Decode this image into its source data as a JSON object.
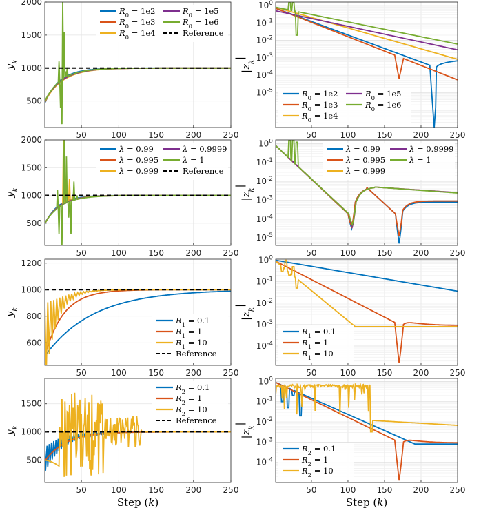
{
  "figure": {
    "x_axis_label": "Step ($k$)"
  },
  "colors": {
    "blue": "#0072BD",
    "orange": "#D95319",
    "yellow": "#EDB120",
    "purple": "#7E2F8E",
    "green": "#77AC30",
    "reference": "#000000"
  },
  "chart_data": [
    {
      "type": "line",
      "panel": "a-left",
      "ylabel": "y_k",
      "yscale": "linear",
      "xlim": [
        1,
        250
      ],
      "ylim": [
        100,
        2000
      ],
      "xticks": [
        50,
        100,
        150,
        200,
        250
      ],
      "yticks": [
        500,
        1000,
        1500,
        2000
      ],
      "x_tick_labels_visible": true,
      "xlabel": "",
      "legend_position": "top-right",
      "series": [
        {
          "name": "R_0 = 1e2",
          "color": "blue",
          "model": {
            "kind": "converge",
            "start": 470,
            "target": 1000,
            "tau": 20
          }
        },
        {
          "name": "R_0 = 1e3",
          "color": "orange",
          "model": {
            "kind": "converge",
            "start": 480,
            "target": 1000,
            "tau": 22
          }
        },
        {
          "name": "R_0 = 1e4",
          "color": "yellow",
          "model": {
            "kind": "converge",
            "start": 490,
            "target": 1000,
            "tau": 24
          }
        },
        {
          "name": "R_0 = 1e5",
          "color": "purple",
          "model": {
            "kind": "converge",
            "start": 500,
            "target": 1000,
            "tau": 23
          }
        },
        {
          "name": "R_0 = 1e6",
          "color": "green",
          "model": {
            "kind": "spiky",
            "start": 500,
            "target": 1000,
            "tau": 22,
            "spikes": [
              [
                20,
                1100
              ],
              [
                22,
                400
              ],
              [
                24,
                150
              ],
              [
                25,
                2000
              ],
              [
                27,
                1550
              ],
              [
                29,
                950
              ],
              [
                31,
                1010
              ]
            ]
          }
        },
        {
          "name": "Reference",
          "color": "reference",
          "dashed": true,
          "model": {
            "kind": "const",
            "value": 1000
          }
        }
      ]
    },
    {
      "type": "line",
      "panel": "a-right",
      "ylabel": "|z_k|",
      "yscale": "log",
      "xlim": [
        1,
        250
      ],
      "ylim_exp": [
        -7,
        0.2
      ],
      "xticks": [
        50,
        100,
        150,
        200,
        250
      ],
      "yticks_exp": [
        -5,
        -4,
        -3,
        -2,
        -1,
        0
      ],
      "x_tick_labels_visible": true,
      "xlabel": "",
      "legend_position": "bottom-left",
      "series": [
        {
          "name": "R_0 = 1e2",
          "color": "blue",
          "model": {
            "kind": "decay",
            "a0": 0.7,
            "rate": 0.0155,
            "dips": [
              [
                218,
                -7
              ]
            ],
            "after": 250
          }
        },
        {
          "name": "R_0 = 1e3",
          "color": "orange",
          "model": {
            "kind": "decay",
            "a0": 0.7,
            "rate": 0.0165,
            "dips": [
              [
                170,
                -4.2
              ]
            ]
          }
        },
        {
          "name": "R_0 = 1e4",
          "color": "yellow",
          "model": {
            "kind": "decay",
            "a0": 0.8,
            "rate": 0.012
          }
        },
        {
          "name": "R_0 = 1e5",
          "color": "purple",
          "model": {
            "kind": "decay",
            "a0": 0.5,
            "rate": 0.009
          }
        },
        {
          "name": "R_0 = 1e6",
          "color": "green",
          "model": {
            "kind": "decay",
            "a0": 0.8,
            "rate": 0.0085,
            "spikes": [
              [
                20,
                1.5
              ],
              [
                25,
                1.5
              ],
              [
                30,
                0.02
              ]
            ]
          }
        }
      ]
    },
    {
      "type": "line",
      "panel": "b-left",
      "ylabel": "y_k",
      "yscale": "linear",
      "xlim": [
        1,
        250
      ],
      "ylim": [
        100,
        2000
      ],
      "xticks": [
        50,
        100,
        150,
        200,
        250
      ],
      "yticks": [
        500,
        1000,
        1500,
        2000
      ],
      "x_tick_labels_visible": true,
      "xlabel": "",
      "legend_position": "top-right",
      "series": [
        {
          "name": "λ = 0.99",
          "color": "blue",
          "model": {
            "kind": "converge",
            "start": 480,
            "target": 1000,
            "tau": 18
          }
        },
        {
          "name": "λ = 0.995",
          "color": "orange",
          "model": {
            "kind": "converge",
            "start": 490,
            "target": 1000,
            "tau": 20
          }
        },
        {
          "name": "λ = 0.999",
          "color": "yellow",
          "model": {
            "kind": "spiky",
            "start": 490,
            "target": 1000,
            "tau": 20,
            "spikes": [
              [
                26,
                2000
              ],
              [
                30,
                900
              ],
              [
                34,
                1300
              ],
              [
                38,
                1000
              ]
            ]
          }
        },
        {
          "name": "λ = 0.9999",
          "color": "purple",
          "model": {
            "kind": "converge",
            "start": 500,
            "target": 1000,
            "tau": 21
          }
        },
        {
          "name": "λ = 1",
          "color": "green",
          "model": {
            "kind": "spiky",
            "start": 500,
            "target": 1000,
            "tau": 22,
            "spikes": [
              [
                18,
                1100
              ],
              [
                20,
                300
              ],
              [
                24,
                100
              ],
              [
                27,
                2000
              ],
              [
                30,
                1700
              ],
              [
                33,
                600
              ],
              [
                36,
                300
              ],
              [
                40,
                1250
              ],
              [
                44,
                1000
              ]
            ]
          }
        },
        {
          "name": "Reference",
          "color": "reference",
          "dashed": true,
          "model": {
            "kind": "const",
            "value": 1000
          }
        }
      ]
    },
    {
      "type": "line",
      "panel": "b-right",
      "ylabel": "|z_k|",
      "yscale": "log",
      "xlim": [
        1,
        250
      ],
      "ylim_exp": [
        -5.4,
        0.2
      ],
      "xticks": [
        50,
        100,
        150,
        200,
        250
      ],
      "yticks_exp": [
        -5,
        -4,
        -3,
        -2,
        -1,
        0
      ],
      "x_tick_labels_visible": true,
      "xlabel": "",
      "legend_position": "top-right",
      "series": [
        {
          "name": "λ = 0.99",
          "color": "blue",
          "model": {
            "kind": "double_dip",
            "d1": 105,
            "d2": 170,
            "low1": -4.5,
            "low2": -5.3,
            "peak": 0.005,
            "tail": 0.0008
          }
        },
        {
          "name": "λ = 0.995",
          "color": "orange",
          "model": {
            "kind": "double_dip",
            "d1": 105,
            "d2": 170,
            "low1": -4.4,
            "low2": -4.9,
            "peak": 0.005,
            "tail": 0.0009
          }
        },
        {
          "name": "λ = 0.999",
          "color": "yellow",
          "model": {
            "kind": "double_dip",
            "d1": 106,
            "d2": 0,
            "low1": -4.3,
            "low2": 0,
            "peak": 0.005,
            "tail": 0.0025
          }
        },
        {
          "name": "λ = 0.9999",
          "color": "purple",
          "model": {
            "kind": "double_dip",
            "d1": 106,
            "d2": 0,
            "low1": -4.4,
            "low2": 0,
            "peak": 0.005,
            "tail": 0.0025
          }
        },
        {
          "name": "λ = 1",
          "color": "green",
          "model": {
            "kind": "double_dip",
            "d1": 106,
            "d2": 0,
            "low1": -4.3,
            "low2": 0,
            "peak": 0.005,
            "tail": 0.0024,
            "spikes": [
              [
                20,
                1.5
              ],
              [
                25,
                1.6
              ],
              [
                30,
                1.2
              ]
            ]
          }
        }
      ]
    },
    {
      "type": "line",
      "panel": "c-left",
      "ylabel": "y_k",
      "yscale": "linear",
      "xlim": [
        1,
        250
      ],
      "ylim": [
        430,
        1230
      ],
      "xticks": [
        50,
        100,
        150,
        200,
        250
      ],
      "yticks": [
        600,
        800,
        1000,
        1200
      ],
      "x_tick_labels_visible": true,
      "xlabel": "",
      "legend_position": "bottom-right",
      "series": [
        {
          "name": "R_1 = 0.1",
          "color": "blue",
          "model": {
            "kind": "converge",
            "start": 500,
            "target": 1000,
            "tau": 65
          }
        },
        {
          "name": "R_1 = 1",
          "color": "orange",
          "model": {
            "kind": "converge",
            "start": 500,
            "target": 1000,
            "tau": 25
          }
        },
        {
          "name": "R_1 = 10",
          "color": "yellow",
          "model": {
            "kind": "oscill",
            "start": 600,
            "target": 1000,
            "tau": 18,
            "amp": 300,
            "period": 4,
            "decay": 14
          }
        },
        {
          "name": "Reference",
          "color": "reference",
          "dashed": true,
          "model": {
            "kind": "const",
            "value": 1000
          }
        }
      ]
    },
    {
      "type": "line",
      "panel": "c-right",
      "ylabel": "|z_k|",
      "yscale": "log",
      "xlim": [
        1,
        250
      ],
      "ylim_exp": [
        -4.9,
        0.05
      ],
      "xticks": [
        50,
        100,
        150,
        200,
        250
      ],
      "yticks_exp": [
        -4,
        -3,
        -2,
        -1,
        0
      ],
      "x_tick_labels_visible": true,
      "xlabel": "",
      "legend_position": "bottom-left",
      "series": [
        {
          "name": "R_1 = 0.1",
          "color": "blue",
          "model": {
            "kind": "decay",
            "a0": 1.0,
            "rate": 0.0058
          }
        },
        {
          "name": "R_1 = 1",
          "color": "orange",
          "model": {
            "kind": "decay",
            "a0": 0.9,
            "rate": 0.0175,
            "dips": [
              [
                170,
                -4.8
              ]
            ],
            "tail": 0.0009
          }
        },
        {
          "name": "R_1 = 10",
          "color": "yellow",
          "model": {
            "kind": "decay",
            "a0": 0.9,
            "rate": 0.028,
            "floor": 0.0008,
            "spikes": [
              [
                10,
                0.3
              ],
              [
                15,
                1.0
              ],
              [
                20,
                0.2
              ],
              [
                25,
                0.5
              ],
              [
                30,
                0.05
              ]
            ]
          }
        }
      ]
    },
    {
      "type": "line",
      "panel": "d-left",
      "ylabel": "y_k",
      "yscale": "linear",
      "xlim": [
        1,
        250
      ],
      "ylim": [
        100,
        1950
      ],
      "xticks": [
        50,
        100,
        150,
        200,
        250
      ],
      "yticks": [
        500,
        1000,
        1500
      ],
      "x_tick_labels_visible": true,
      "xlabel": "Step ($k$)",
      "legend_position": "top-right",
      "series": [
        {
          "name": "R_2 = 0.1",
          "color": "blue",
          "model": {
            "kind": "oscill",
            "start": 500,
            "target": 1000,
            "tau": 25,
            "amp": 250,
            "period": 3,
            "decay": 30
          }
        },
        {
          "name": "R_2 = 1",
          "color": "orange",
          "model": {
            "kind": "converge",
            "start": 480,
            "target": 1000,
            "tau": 28
          }
        },
        {
          "name": "R_2 = 10",
          "color": "yellow",
          "model": {
            "kind": "chaos",
            "start": 500,
            "target": 1000,
            "amp": 800,
            "period": 6,
            "until": 130,
            "lo": 100,
            "hi": 1950
          }
        },
        {
          "name": "Reference",
          "color": "reference",
          "dashed": true,
          "model": {
            "kind": "const",
            "value": 1000
          }
        }
      ]
    },
    {
      "type": "line",
      "panel": "d-right",
      "ylabel": "|z_k|",
      "yscale": "log",
      "xlim": [
        1,
        250
      ],
      "ylim_exp": [
        -5.0,
        0.15
      ],
      "xticks": [
        50,
        100,
        150,
        200,
        250
      ],
      "yticks_exp": [
        -4,
        -3,
        -2,
        -1,
        0
      ],
      "x_tick_labels_visible": true,
      "xlabel": "Step ($k$)",
      "legend_position": "bottom-left",
      "series": [
        {
          "name": "R_2 = 0.1",
          "color": "blue",
          "model": {
            "kind": "decay",
            "a0": 0.9,
            "rate": 0.016,
            "floor": 0.0008,
            "spikes": [
              [
                10,
                0.1
              ],
              [
                18,
                0.05
              ],
              [
                25,
                0.2
              ],
              [
                35,
                0.02
              ]
            ]
          }
        },
        {
          "name": "R_2 = 1",
          "color": "orange",
          "model": {
            "kind": "decay",
            "a0": 0.9,
            "rate": 0.0175,
            "dips": [
              [
                170,
                -4.9
              ]
            ],
            "tail": 0.0009
          }
        },
        {
          "name": "R_2 = 10",
          "color": "yellow",
          "model": {
            "kind": "flat_chaos",
            "level": 0.7,
            "until": 130,
            "after": 0.012,
            "lowest": 0.008
          }
        }
      ]
    }
  ]
}
